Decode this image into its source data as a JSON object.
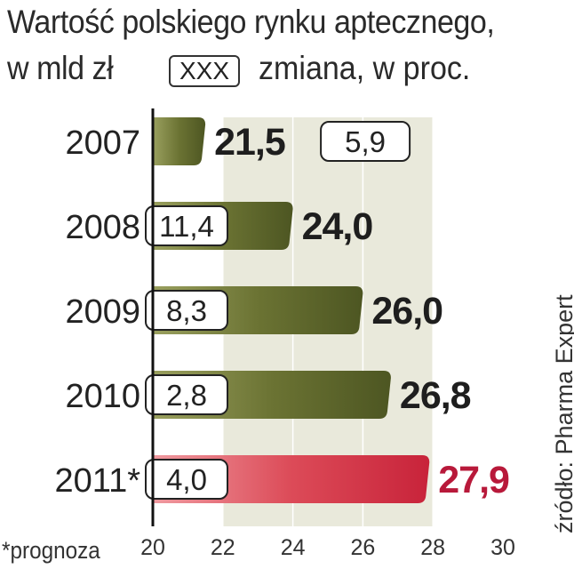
{
  "title_line1": "Wartość polskiego rynku aptecznego,",
  "title_line2": "w mld zł",
  "legend": {
    "box_label": "XXX",
    "label": "zmiana, w proc."
  },
  "source": "źródło: Pharma Expert",
  "footnote": "*prognoza",
  "colors": {
    "bar": "#5f6a2c",
    "bar_highlight": "#d9424e",
    "value": "#1e1e1e",
    "value_highlight": "#b8193a",
    "band": "#e9e9db"
  },
  "chart_data": {
    "type": "bar",
    "orientation": "horizontal",
    "categories": [
      "2007",
      "2008",
      "2009",
      "2010",
      "2011*"
    ],
    "values": [
      21.5,
      24.0,
      26.0,
      26.8,
      27.9
    ],
    "value_labels": [
      "21,5",
      "24,0",
      "26,0",
      "26,8",
      "27,9"
    ],
    "change_labels": [
      "5,9",
      "11,4",
      "8,3",
      "2,8",
      "4,0"
    ],
    "highlight_index": 4,
    "xlim": [
      20,
      30
    ],
    "xticks": [
      20,
      22,
      24,
      26,
      28,
      30
    ],
    "xtick_labels": [
      "20",
      "22",
      "24",
      "26",
      "28",
      "30"
    ]
  }
}
